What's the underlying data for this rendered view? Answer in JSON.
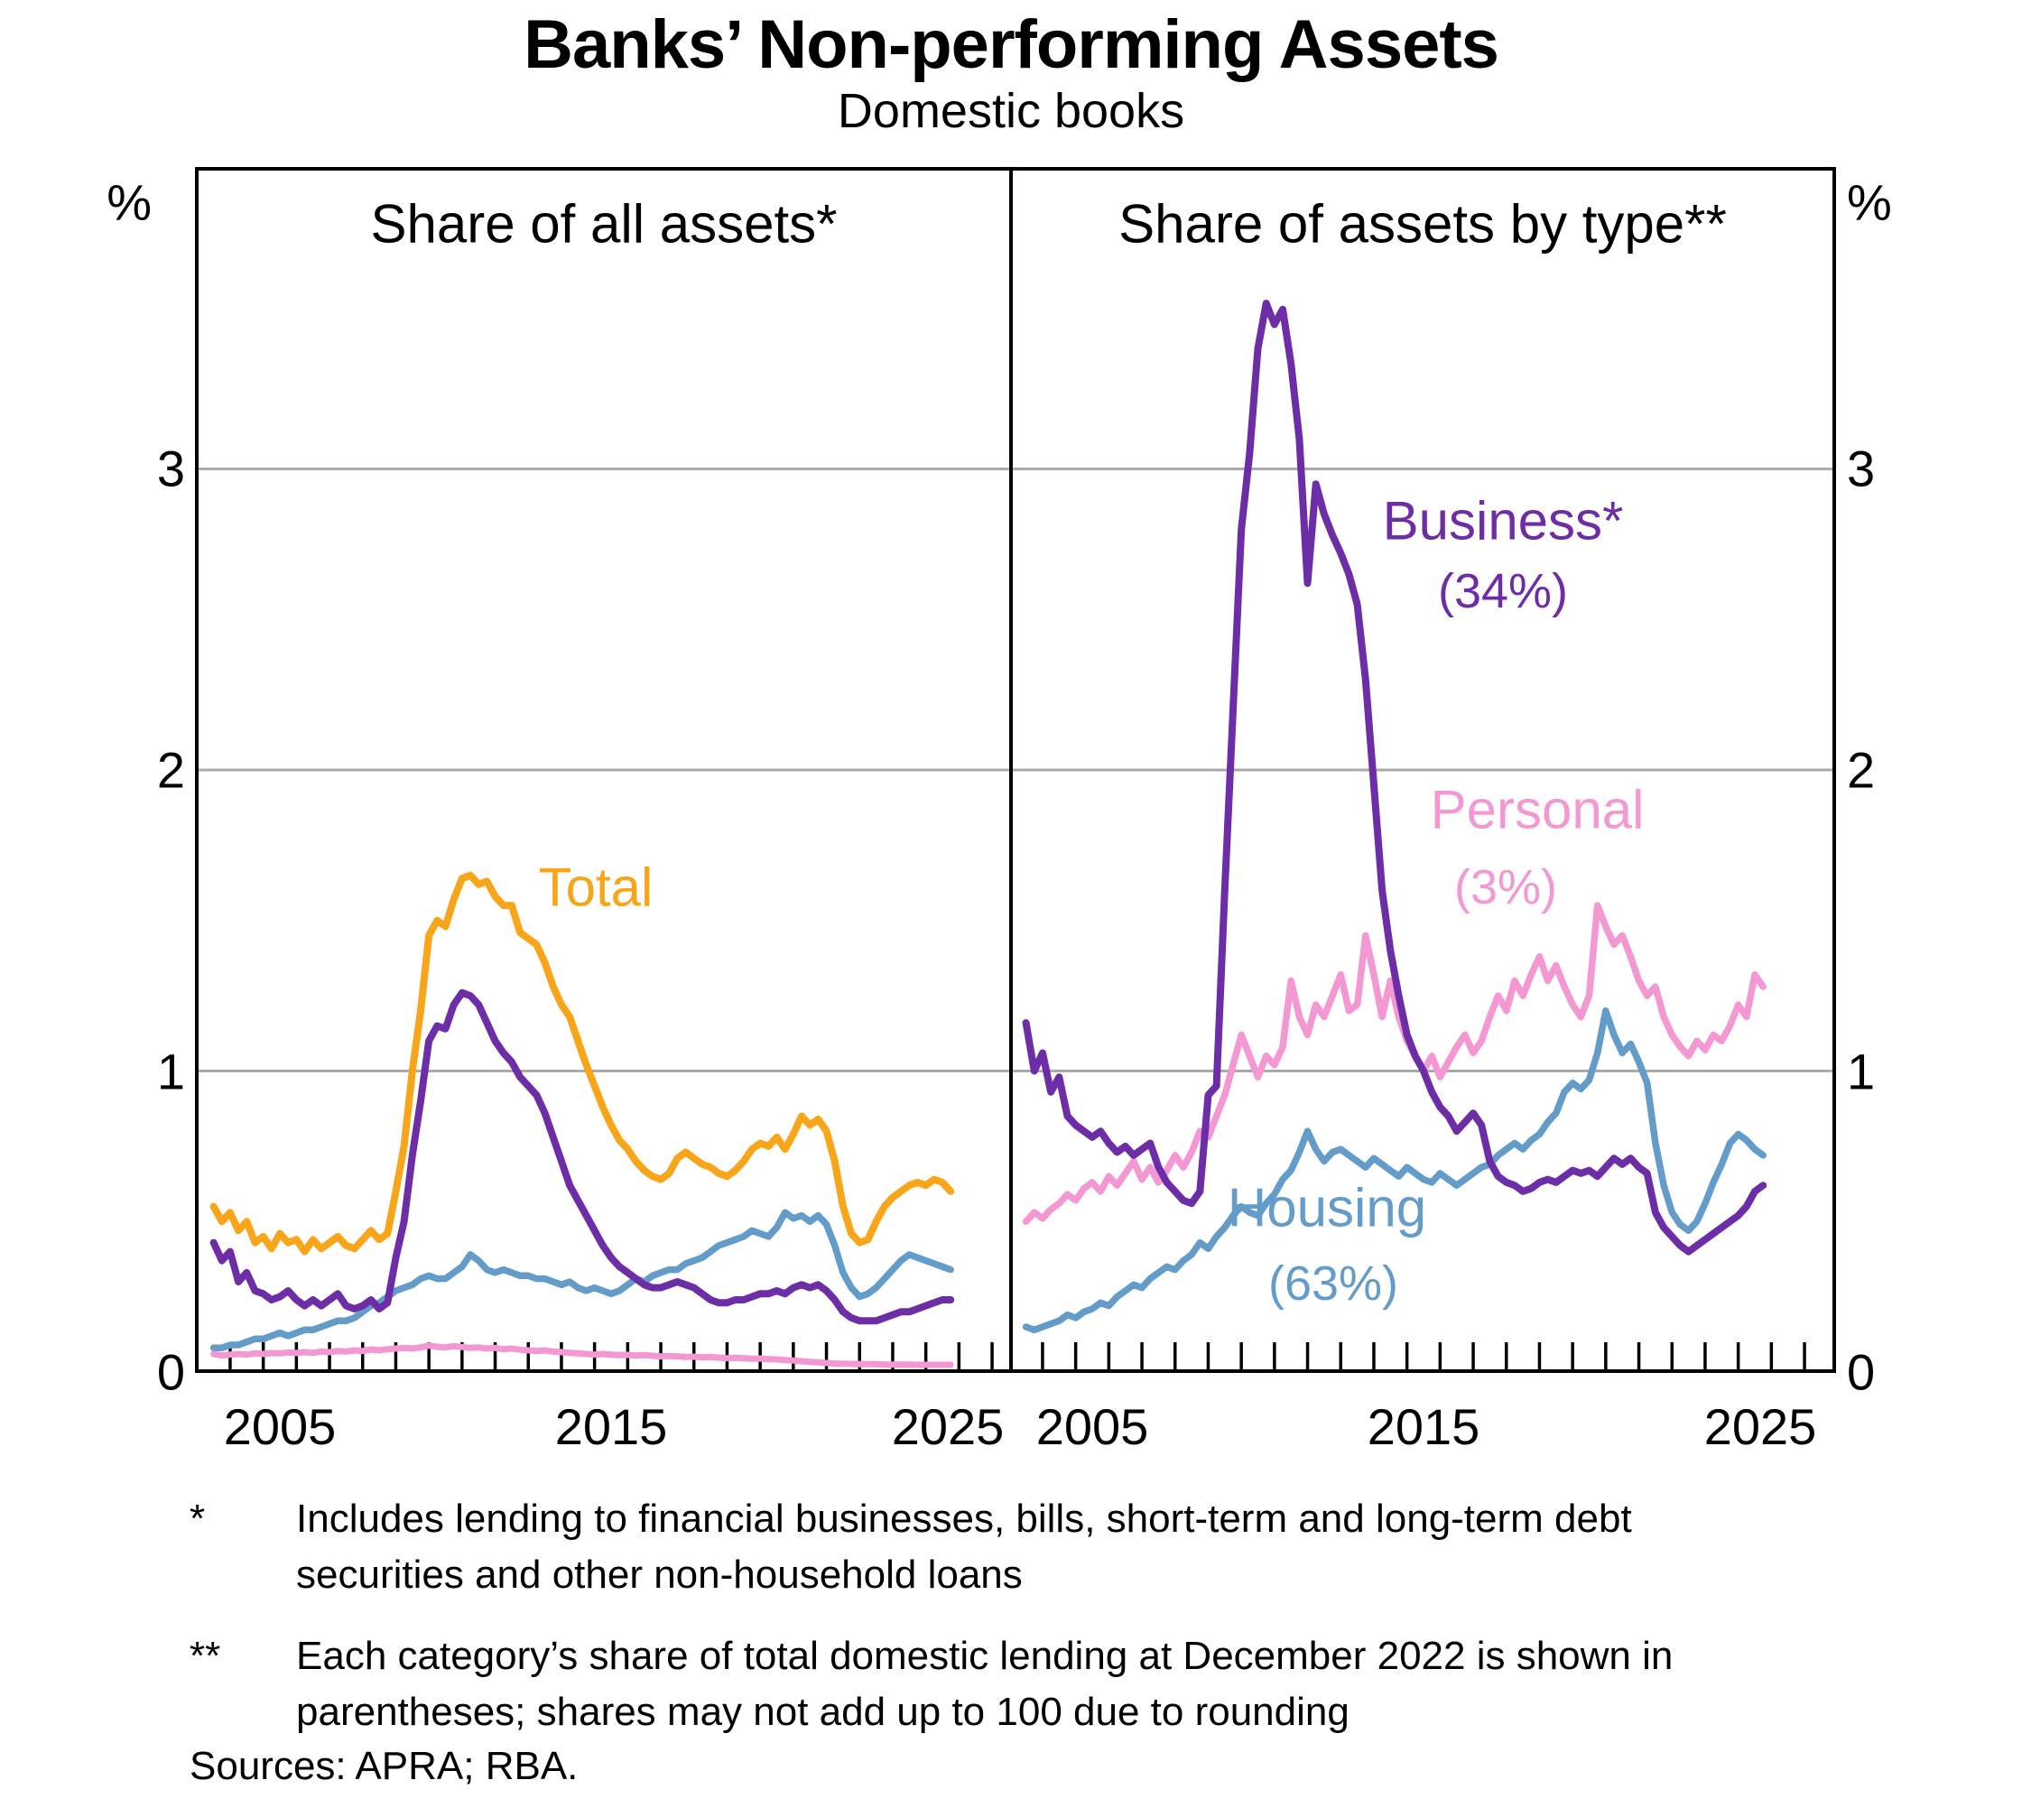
{
  "title": "Banks’ Non-performing Assets",
  "subtitle": "Domestic books",
  "panels": [
    {
      "header": "Share of all assets*"
    },
    {
      "header": "Share of assets by type**"
    }
  ],
  "axes": {
    "percent": "%",
    "y_ticks": [
      "3",
      "2",
      "1",
      "0"
    ],
    "x_ticks": [
      "2005",
      "2015",
      "2025"
    ]
  },
  "series_labels": {
    "total": "Total",
    "business": "Business*",
    "business_share": "(34%)",
    "personal": "Personal",
    "personal_share": "(3%)",
    "housing": "Housing",
    "housing_share": "(63%)"
  },
  "footnotes": [
    {
      "marker": "*",
      "text": "Includes lending to financial businesses, bills, short-term and long-term debt securities and other non-household loans"
    },
    {
      "marker": "**",
      "text": "Each category’s share of total domestic lending at December 2022 is shown in parentheses; shares may not add up to 100 due to rounding"
    }
  ],
  "sources": "Sources: APRA; RBA.",
  "colors": {
    "total": "#F9A51A",
    "business": "#6C2DA7",
    "personal": "#F398D2",
    "housing": "#639BC9",
    "grid": "#ABABAB",
    "axis": "#000000"
  },
  "chart_data": [
    {
      "type": "line",
      "title": "Share of all assets*",
      "ylabel": "%",
      "ylim": [
        0,
        4
      ],
      "grid_y": [
        1,
        2,
        3
      ],
      "x_tick_years": [
        2005,
        2015,
        2025
      ],
      "x_start": 2003.0,
      "x_step": 0.25,
      "series": [
        {
          "name": "Housing",
          "color_key": "housing",
          "width": 7.5,
          "values": [
            0.08,
            0.08,
            0.09,
            0.09,
            0.1,
            0.11,
            0.11,
            0.12,
            0.13,
            0.12,
            0.13,
            0.14,
            0.14,
            0.15,
            0.16,
            0.17,
            0.17,
            0.18,
            0.2,
            0.22,
            0.23,
            0.25,
            0.27,
            0.28,
            0.29,
            0.31,
            0.32,
            0.31,
            0.31,
            0.33,
            0.35,
            0.39,
            0.37,
            0.34,
            0.33,
            0.34,
            0.33,
            0.32,
            0.32,
            0.31,
            0.31,
            0.3,
            0.29,
            0.3,
            0.28,
            0.27,
            0.28,
            0.27,
            0.26,
            0.27,
            0.29,
            0.31,
            0.3,
            0.32,
            0.33,
            0.34,
            0.34,
            0.36,
            0.37,
            0.38,
            0.4,
            0.42,
            0.43,
            0.44,
            0.45,
            0.47,
            0.46,
            0.45,
            0.48,
            0.53,
            0.51,
            0.52,
            0.5,
            0.52,
            0.49,
            0.42,
            0.33,
            0.28,
            0.25,
            0.26,
            0.28,
            0.31,
            0.34,
            0.37,
            0.39,
            0.38,
            0.37,
            0.36,
            0.35,
            0.34
          ]
        },
        {
          "name": "Personal",
          "color_key": "personal",
          "width": 7,
          "values": [
            0.06,
            0.055,
            0.058,
            0.06,
            0.058,
            0.062,
            0.06,
            0.063,
            0.062,
            0.065,
            0.063,
            0.066,
            0.064,
            0.068,
            0.066,
            0.07,
            0.068,
            0.072,
            0.07,
            0.075,
            0.072,
            0.076,
            0.078,
            0.08,
            0.078,
            0.082,
            0.088,
            0.084,
            0.082,
            0.086,
            0.083,
            0.08,
            0.082,
            0.078,
            0.08,
            0.076,
            0.078,
            0.074,
            0.072,
            0.07,
            0.072,
            0.068,
            0.066,
            0.064,
            0.062,
            0.06,
            0.058,
            0.06,
            0.058,
            0.056,
            0.057,
            0.055,
            0.056,
            0.054,
            0.052,
            0.053,
            0.052,
            0.05,
            0.051,
            0.049,
            0.05,
            0.048,
            0.046,
            0.047,
            0.046,
            0.044,
            0.045,
            0.043,
            0.042,
            0.04,
            0.038,
            0.036,
            0.034,
            0.032,
            0.03,
            0.028,
            0.028,
            0.027,
            0.026,
            0.026,
            0.026,
            0.025,
            0.025,
            0.025,
            0.025,
            0.024,
            0.024,
            0.024,
            0.024,
            0.024
          ]
        },
        {
          "name": "Business",
          "color_key": "business",
          "width": 8,
          "values": [
            0.43,
            0.37,
            0.4,
            0.3,
            0.33,
            0.27,
            0.26,
            0.24,
            0.25,
            0.27,
            0.24,
            0.22,
            0.24,
            0.22,
            0.24,
            0.26,
            0.22,
            0.21,
            0.22,
            0.24,
            0.21,
            0.23,
            0.38,
            0.5,
            0.72,
            0.9,
            1.1,
            1.15,
            1.14,
            1.22,
            1.26,
            1.25,
            1.22,
            1.16,
            1.1,
            1.06,
            1.03,
            0.98,
            0.95,
            0.92,
            0.86,
            0.78,
            0.7,
            0.62,
            0.57,
            0.52,
            0.47,
            0.42,
            0.38,
            0.35,
            0.33,
            0.31,
            0.29,
            0.28,
            0.28,
            0.29,
            0.3,
            0.29,
            0.28,
            0.26,
            0.24,
            0.23,
            0.23,
            0.24,
            0.24,
            0.25,
            0.26,
            0.26,
            0.27,
            0.26,
            0.28,
            0.29,
            0.28,
            0.29,
            0.27,
            0.24,
            0.2,
            0.18,
            0.17,
            0.17,
            0.17,
            0.18,
            0.19,
            0.2,
            0.2,
            0.21,
            0.22,
            0.23,
            0.24,
            0.24
          ]
        },
        {
          "name": "Total",
          "color_key": "total",
          "width": 8,
          "values": [
            0.55,
            0.5,
            0.53,
            0.47,
            0.5,
            0.43,
            0.45,
            0.41,
            0.46,
            0.43,
            0.44,
            0.4,
            0.44,
            0.41,
            0.43,
            0.45,
            0.42,
            0.41,
            0.44,
            0.47,
            0.44,
            0.46,
            0.6,
            0.75,
            1.0,
            1.2,
            1.45,
            1.5,
            1.48,
            1.57,
            1.64,
            1.65,
            1.62,
            1.63,
            1.58,
            1.55,
            1.55,
            1.46,
            1.44,
            1.42,
            1.36,
            1.28,
            1.22,
            1.18,
            1.1,
            1.02,
            0.95,
            0.88,
            0.82,
            0.77,
            0.74,
            0.7,
            0.67,
            0.65,
            0.64,
            0.66,
            0.71,
            0.73,
            0.71,
            0.69,
            0.68,
            0.66,
            0.65,
            0.67,
            0.7,
            0.74,
            0.76,
            0.75,
            0.78,
            0.74,
            0.79,
            0.85,
            0.82,
            0.84,
            0.8,
            0.7,
            0.55,
            0.46,
            0.43,
            0.44,
            0.5,
            0.55,
            0.58,
            0.6,
            0.62,
            0.63,
            0.62,
            0.64,
            0.63,
            0.6
          ]
        }
      ]
    },
    {
      "type": "line",
      "title": "Share of assets by type**",
      "ylabel": "%",
      "ylim": [
        0,
        4
      ],
      "grid_y": [
        1,
        2,
        3
      ],
      "x_tick_years": [
        2005,
        2015,
        2025
      ],
      "x_start": 2003.0,
      "x_step": 0.25,
      "series": [
        {
          "name": "Housing (63%)",
          "color_key": "housing",
          "width": 7.5,
          "values": [
            0.15,
            0.14,
            0.15,
            0.16,
            0.17,
            0.19,
            0.18,
            0.2,
            0.21,
            0.23,
            0.22,
            0.25,
            0.27,
            0.29,
            0.28,
            0.31,
            0.33,
            0.35,
            0.34,
            0.37,
            0.39,
            0.43,
            0.41,
            0.45,
            0.48,
            0.52,
            0.55,
            0.53,
            0.52,
            0.56,
            0.59,
            0.64,
            0.67,
            0.73,
            0.8,
            0.74,
            0.7,
            0.73,
            0.74,
            0.72,
            0.7,
            0.68,
            0.71,
            0.69,
            0.67,
            0.65,
            0.68,
            0.66,
            0.64,
            0.63,
            0.66,
            0.64,
            0.62,
            0.64,
            0.66,
            0.68,
            0.69,
            0.72,
            0.74,
            0.76,
            0.74,
            0.77,
            0.79,
            0.83,
            0.86,
            0.93,
            0.96,
            0.94,
            0.97,
            1.06,
            1.2,
            1.12,
            1.06,
            1.09,
            1.03,
            0.96,
            0.76,
            0.62,
            0.53,
            0.49,
            0.47,
            0.5,
            0.56,
            0.63,
            0.69,
            0.76,
            0.79,
            0.77,
            0.74,
            0.72
          ]
        },
        {
          "name": "Personal (3%)",
          "color_key": "personal",
          "width": 7.5,
          "values": [
            0.5,
            0.53,
            0.51,
            0.54,
            0.56,
            0.59,
            0.57,
            0.61,
            0.63,
            0.6,
            0.65,
            0.62,
            0.66,
            0.7,
            0.64,
            0.68,
            0.63,
            0.67,
            0.72,
            0.68,
            0.73,
            0.8,
            0.78,
            0.85,
            0.92,
            1.02,
            1.12,
            1.05,
            0.98,
            1.05,
            1.02,
            1.08,
            1.3,
            1.18,
            1.12,
            1.22,
            1.18,
            1.25,
            1.32,
            1.2,
            1.22,
            1.45,
            1.32,
            1.18,
            1.3,
            1.18,
            1.1,
            1.05,
            1.0,
            1.05,
            0.98,
            1.03,
            1.08,
            1.12,
            1.06,
            1.1,
            1.18,
            1.25,
            1.2,
            1.3,
            1.25,
            1.32,
            1.38,
            1.3,
            1.35,
            1.28,
            1.22,
            1.18,
            1.25,
            1.55,
            1.48,
            1.42,
            1.45,
            1.38,
            1.3,
            1.25,
            1.28,
            1.18,
            1.12,
            1.08,
            1.05,
            1.1,
            1.07,
            1.12,
            1.1,
            1.15,
            1.22,
            1.18,
            1.32,
            1.28
          ]
        },
        {
          "name": "Business* (34%)",
          "color_key": "business",
          "width": 8,
          "values": [
            1.16,
            1.0,
            1.06,
            0.93,
            0.98,
            0.85,
            0.82,
            0.8,
            0.78,
            0.8,
            0.76,
            0.73,
            0.75,
            0.72,
            0.74,
            0.76,
            0.68,
            0.63,
            0.6,
            0.57,
            0.56,
            0.6,
            0.92,
            0.95,
            1.6,
            2.2,
            2.8,
            3.05,
            3.4,
            3.55,
            3.48,
            3.53,
            3.35,
            3.1,
            2.62,
            2.95,
            2.85,
            2.78,
            2.72,
            2.65,
            2.55,
            2.3,
            1.95,
            1.6,
            1.4,
            1.25,
            1.12,
            1.05,
            1.0,
            0.93,
            0.88,
            0.85,
            0.8,
            0.83,
            0.86,
            0.82,
            0.7,
            0.65,
            0.63,
            0.62,
            0.6,
            0.61,
            0.63,
            0.64,
            0.63,
            0.65,
            0.67,
            0.66,
            0.67,
            0.65,
            0.68,
            0.71,
            0.69,
            0.71,
            0.68,
            0.66,
            0.53,
            0.48,
            0.45,
            0.42,
            0.4,
            0.42,
            0.44,
            0.46,
            0.48,
            0.5,
            0.52,
            0.55,
            0.6,
            0.62
          ]
        }
      ]
    }
  ]
}
